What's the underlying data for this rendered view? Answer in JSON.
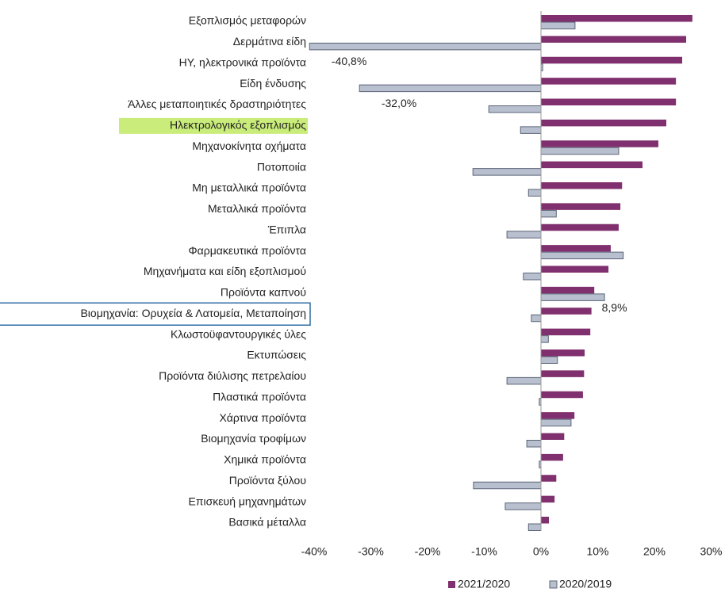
{
  "chart_data": {
    "type": "hbar",
    "categories": [
      "Εξοπλισμός μεταφορών",
      "Δερμάτινα είδη",
      "ΗΥ, ηλεκτρονικά προϊόντα",
      "Είδη ένδυσης",
      "Άλλες μεταποιητικές δραστηριότητες",
      "Ηλεκτρολογικός εξοπλισμός",
      "Μηχανοκίνητα οχήματα",
      "Ποτοποιία",
      "Μη μεταλλικά προϊόντα",
      "Μεταλλικά προϊόντα",
      "Έπιπλα",
      "Φαρμακευτικά προϊόντα",
      "Μηχανήματα και είδη εξοπλισμού",
      "Προϊόντα καπνού",
      "Βιομηχανία: Ορυχεία & Λατομεία, Μεταποίηση",
      "Κλωστοϋφαντουργικές ύλες",
      "Εκτυπώσεις",
      "Προϊόντα διύλισης πετρελαίου",
      "Πλαστικά προϊόντα",
      "Χάρτινα προϊόντα",
      "Βιομηχανία τροφίμων",
      "Χημικά προϊόντα",
      "Προϊόντα ξύλου",
      "Επισκευή μηχανημάτων",
      "Βασικά μέταλλα"
    ],
    "series": [
      {
        "name": "2021/2020",
        "color": "#80306f",
        "values": [
          26.7,
          25.6,
          24.9,
          23.8,
          23.8,
          22.1,
          20.7,
          17.9,
          14.3,
          14.0,
          13.7,
          12.3,
          11.9,
          9.4,
          8.9,
          8.7,
          7.7,
          7.6,
          7.4,
          5.9,
          4.1,
          3.9,
          2.7,
          2.4,
          1.4
        ],
        "value_labels": [
          null,
          null,
          null,
          null,
          null,
          null,
          null,
          null,
          null,
          null,
          null,
          null,
          null,
          null,
          "8,9%",
          null,
          null,
          null,
          null,
          null,
          null,
          null,
          null,
          null,
          null
        ]
      },
      {
        "name": "2020/2019",
        "color": "#b8c0cf",
        "values": [
          6.0,
          -40.8,
          0.3,
          -32.0,
          -9.2,
          -3.6,
          13.7,
          -12.0,
          -2.2,
          2.7,
          -6.0,
          14.5,
          -3.1,
          11.2,
          -1.7,
          1.3,
          2.9,
          -6.0,
          -0.3,
          5.3,
          -2.5,
          -0.3,
          -11.9,
          -6.3,
          -2.2
        ],
        "value_labels": [
          null,
          "-40,8%",
          null,
          "-32,0%",
          null,
          null,
          null,
          null,
          null,
          null,
          null,
          null,
          null,
          null,
          null,
          null,
          null,
          null,
          null,
          null,
          null,
          null,
          null,
          null,
          null
        ]
      }
    ],
    "xlim": [
      -41,
      30
    ],
    "xticks": [
      {
        "value": -40,
        "label": "-40%"
      },
      {
        "value": -30,
        "label": "-30%"
      },
      {
        "value": -20,
        "label": "-20%"
      },
      {
        "value": -10,
        "label": "-10%"
      },
      {
        "value": 0,
        "label": "0%"
      },
      {
        "value": 10,
        "label": "10%"
      },
      {
        "value": 20,
        "label": "20%"
      },
      {
        "value": 30,
        "label": "30%"
      }
    ],
    "highlight": "Ηλεκτρολογικός εξοπλισμός",
    "boxed": "Βιομηχανία: Ορυχεία & Λατομεία, Μεταποίηση",
    "legend": "bottom"
  }
}
